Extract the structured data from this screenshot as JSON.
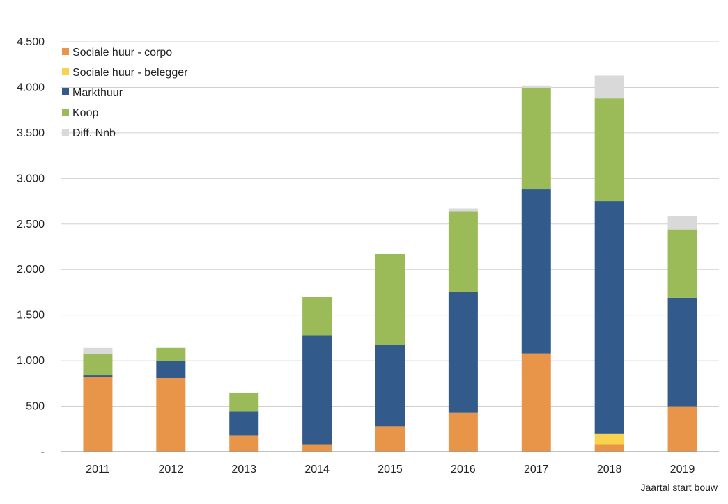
{
  "chart_data": {
    "type": "bar",
    "stacked": true,
    "title": "",
    "xlabel": "Jaartal start bouw",
    "ylabel": "",
    "ylim": [
      0,
      4500
    ],
    "yticks": [
      0,
      500,
      1000,
      1500,
      2000,
      2500,
      3000,
      3500,
      4000,
      4500
    ],
    "ytick_labels": [
      "-",
      "500",
      "1.000",
      "1.500",
      "2.000",
      "2.500",
      "3.000",
      "3.500",
      "4.000",
      "4.500"
    ],
    "grid": true,
    "legend_position": "top-left",
    "categories": [
      "2011",
      "2012",
      "2013",
      "2014",
      "2015",
      "2016",
      "2017",
      "2018",
      "2019"
    ],
    "series": [
      {
        "name": "Sociale huur - corpo",
        "color": "#E8954A",
        "values": [
          820,
          810,
          180,
          80,
          280,
          430,
          1080,
          80,
          500
        ]
      },
      {
        "name": "Sociale huur - belegger",
        "color": "#F9D34D",
        "values": [
          0,
          0,
          0,
          0,
          0,
          0,
          0,
          120,
          0
        ]
      },
      {
        "name": "Markthuur",
        "color": "#325A8A",
        "values": [
          20,
          190,
          260,
          1200,
          890,
          1320,
          1800,
          2550,
          1190
        ]
      },
      {
        "name": "Koop",
        "color": "#9BBB59",
        "values": [
          230,
          140,
          210,
          420,
          1000,
          890,
          1110,
          1130,
          750
        ]
      },
      {
        "name": "Diff. Nnb",
        "color": "#D9D9D9",
        "values": [
          70,
          0,
          0,
          0,
          0,
          30,
          30,
          250,
          150
        ]
      }
    ]
  }
}
